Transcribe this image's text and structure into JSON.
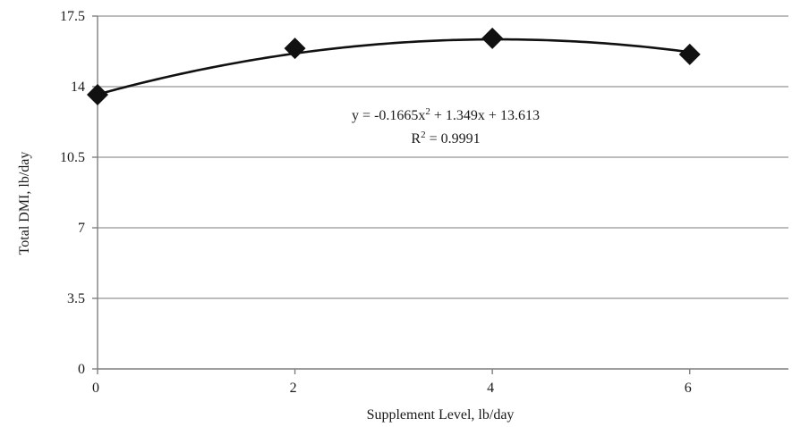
{
  "chart_data": {
    "type": "scatter",
    "xlabel": "Supplement Level, lb/day",
    "ylabel": "Total DMI, lb/day",
    "xlim": [
      0,
      7
    ],
    "ylim": [
      0,
      17.5
    ],
    "x_ticks": [
      "0",
      "2",
      "4",
      "6"
    ],
    "y_ticks": [
      "0",
      "3.5",
      "7",
      "10.5",
      "14",
      "17.5"
    ],
    "grid": "horizontal",
    "series": [
      {
        "x": [
          0,
          2,
          4,
          6
        ],
        "values": [
          13.6,
          15.9,
          16.4,
          15.6
        ],
        "marker": "diamond",
        "color": "#111111"
      }
    ],
    "trendline": {
      "type": "polynomial",
      "order": 2,
      "coefficients": [
        -0.1665,
        1.349,
        13.613
      ]
    },
    "annotation": {
      "equation_prefix": "y = -0.1665x",
      "equation_sup": "2",
      "equation_suffix": " + 1.349x + 13.613",
      "r2_prefix": "R",
      "r2_sup": "2",
      "r2_suffix": " = 0.9991"
    }
  }
}
